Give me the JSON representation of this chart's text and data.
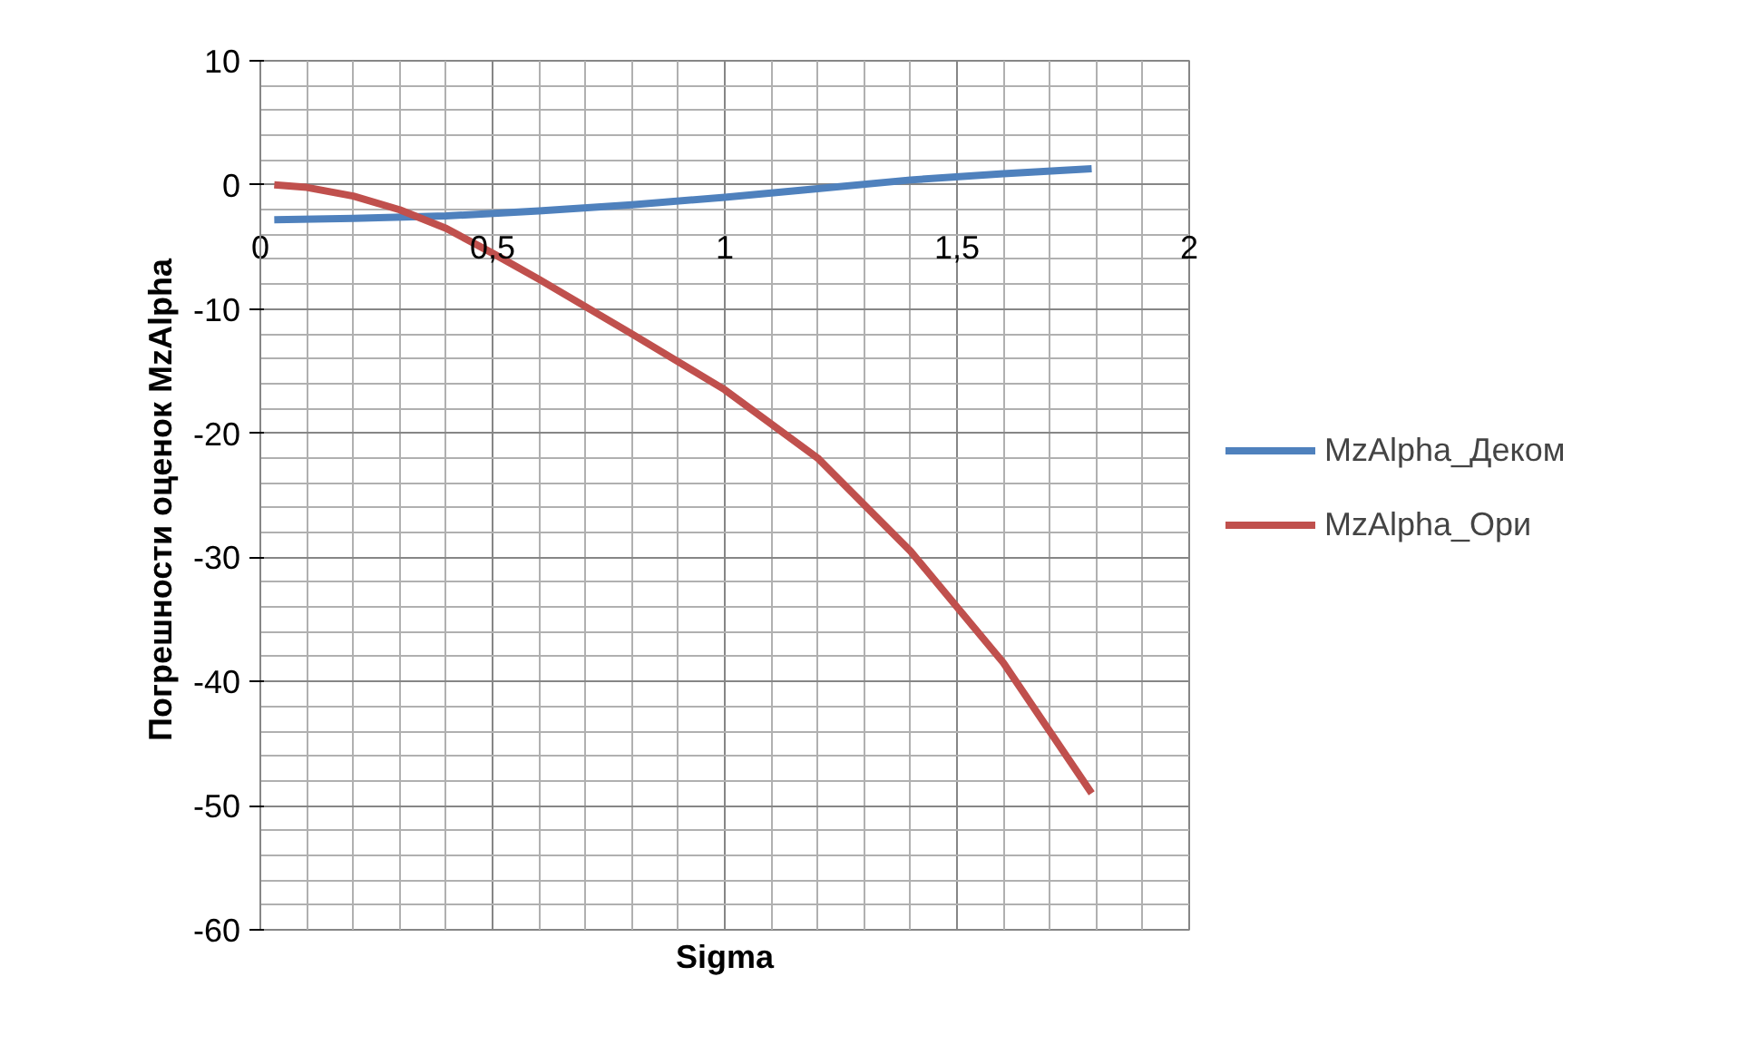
{
  "chart_data": {
    "type": "line",
    "xlabel": "Sigma",
    "ylabel": "Погрешности оценок  MzAlpha",
    "xlim": [
      0,
      2
    ],
    "ylim": [
      -60,
      10
    ],
    "xticks": [
      0,
      {
        "value": 0.5,
        "label": "0,5"
      },
      1,
      {
        "value": 1.5,
        "label": "1,5"
      },
      2
    ],
    "yticks": [
      -60,
      -50,
      -40,
      -30,
      -20,
      -10,
      0,
      10
    ],
    "grid": true,
    "legend": "right",
    "marker": "none",
    "line_style": "solid",
    "series": [
      {
        "name": "MzAlpha_Деком",
        "color": "#4f81bd",
        "x": [
          0.03,
          0.2,
          0.4,
          0.6,
          0.8,
          1.0,
          1.2,
          1.4,
          1.6,
          1.79
        ],
        "values": [
          -2.8,
          -2.7,
          -2.5,
          -2.1,
          -1.6,
          -1.0,
          -0.3,
          0.4,
          0.9,
          1.3
        ]
      },
      {
        "name": "MzAlpha_Ори",
        "color": "#c0504d",
        "x": [
          0.03,
          0.1,
          0.2,
          0.3,
          0.4,
          0.5,
          0.6,
          0.8,
          1.0,
          1.2,
          1.4,
          1.6,
          1.79
        ],
        "values": [
          0,
          -0.2,
          -0.9,
          -2.0,
          -3.5,
          -5.5,
          -7.6,
          -12,
          -16.5,
          -22,
          -29.5,
          -38.5,
          -49
        ]
      }
    ]
  }
}
